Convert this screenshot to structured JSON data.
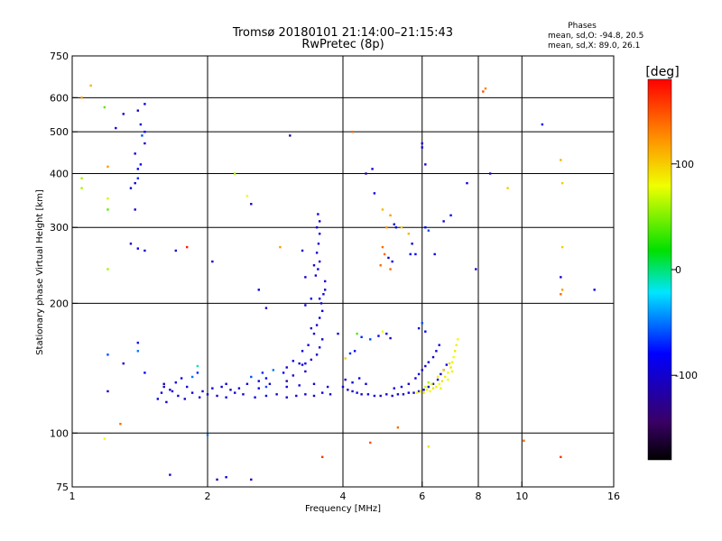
{
  "chart_data": {
    "type": "scatter",
    "title": "Tromsø 20180101 21:14:00–21:15:43",
    "subtitle": "RwPretec (8p)",
    "stats": {
      "heading": "Phases",
      "o_line": "mean, sd,O: -94.8, 20.5",
      "x_line": "mean, sd,X:  89.0, 26.1"
    },
    "xlabel": "Frequency [MHz]",
    "ylabel": "Stationary phase Virtual Height [km]",
    "x_scale": "log",
    "y_scale": "log",
    "xlim": [
      1,
      16
    ],
    "ylim": [
      75,
      750
    ],
    "x_ticks": [
      1,
      2,
      4,
      6,
      8,
      10,
      16
    ],
    "y_ticks": [
      75,
      100,
      200,
      300,
      400,
      500,
      600,
      750
    ],
    "x_grid": [
      2,
      4,
      6,
      8,
      10
    ],
    "y_grid": [
      100,
      200,
      300,
      400,
      500,
      600
    ],
    "colorbar": {
      "label": "[deg]",
      "range": [
        -180,
        180
      ],
      "ticks": [
        100,
        0,
        -100
      ]
    },
    "points": [
      [
        1.55,
        120,
        -95
      ],
      [
        1.58,
        124,
        -90
      ],
      [
        1.62,
        118,
        -100
      ],
      [
        1.67,
        125,
        -95
      ],
      [
        1.72,
        122,
        -85
      ],
      [
        1.78,
        120,
        -100
      ],
      [
        1.85,
        124,
        -95
      ],
      [
        1.92,
        121,
        -90
      ],
      [
        2.0,
        123,
        -95
      ],
      [
        2.1,
        122,
        -100
      ],
      [
        2.2,
        121,
        -90
      ],
      [
        2.3,
        124,
        -95
      ],
      [
        2.4,
        123,
        -100
      ],
      [
        2.55,
        121,
        -90
      ],
      [
        2.7,
        122,
        -95
      ],
      [
        2.85,
        123,
        -100
      ],
      [
        3.0,
        121,
        -95
      ],
      [
        3.15,
        122,
        -90
      ],
      [
        3.3,
        123,
        -100
      ],
      [
        3.45,
        122,
        -95
      ],
      [
        3.6,
        124,
        -90
      ],
      [
        3.75,
        123,
        -100
      ],
      [
        1.6,
        130,
        -110
      ],
      [
        1.75,
        134,
        -90
      ],
      [
        1.9,
        138,
        -70
      ],
      [
        2.2,
        130,
        -80
      ],
      [
        2.5,
        135,
        -60
      ],
      [
        2.8,
        140,
        -50
      ],
      [
        2.95,
        138,
        -90
      ],
      [
        3.1,
        136,
        -100
      ],
      [
        3.25,
        144,
        -95
      ],
      [
        3.4,
        148,
        -90
      ],
      [
        3.5,
        152,
        -100
      ],
      [
        3.55,
        158,
        -95
      ],
      [
        3.6,
        165,
        -100
      ],
      [
        3.45,
        170,
        -95
      ],
      [
        3.5,
        178,
        -100
      ],
      [
        3.55,
        185,
        -90
      ],
      [
        3.6,
        192,
        -95
      ],
      [
        3.58,
        200,
        -100
      ],
      [
        3.62,
        210,
        -90
      ],
      [
        3.65,
        215,
        -95
      ],
      [
        3.48,
        232,
        -100
      ],
      [
        3.52,
        240,
        -95
      ],
      [
        3.55,
        250,
        -90
      ],
      [
        3.5,
        262,
        -100
      ],
      [
        3.53,
        275,
        -95
      ],
      [
        3.55,
        290,
        -90
      ],
      [
        3.5,
        300,
        -100
      ],
      [
        3.55,
        310,
        -95
      ],
      [
        3.52,
        322,
        -90
      ],
      [
        3.3,
        139,
        -100
      ],
      [
        3.2,
        145,
        -95
      ],
      [
        3.35,
        160,
        -90
      ],
      [
        3.4,
        175,
        -100
      ],
      [
        3.25,
        155,
        -95
      ],
      [
        3.1,
        147,
        -90
      ],
      [
        3.0,
        142,
        -100
      ],
      [
        2.6,
        132,
        -95
      ],
      [
        2.65,
        138,
        -70
      ],
      [
        2.7,
        134,
        -80
      ],
      [
        2.45,
        130,
        -90
      ],
      [
        2.35,
        127,
        -100
      ],
      [
        1.6,
        128,
        -100
      ],
      [
        1.65,
        126,
        -95
      ],
      [
        1.7,
        131,
        -90
      ],
      [
        1.8,
        128,
        -95
      ],
      [
        1.95,
        125,
        -100
      ],
      [
        2.05,
        127,
        -90
      ],
      [
        2.15,
        128,
        -95
      ],
      [
        2.25,
        126,
        -100
      ],
      [
        2.6,
        127,
        -90
      ],
      [
        2.75,
        130,
        -95
      ],
      [
        3.0,
        128,
        -100
      ],
      [
        3.2,
        129,
        -90
      ],
      [
        3.45,
        130,
        -95
      ],
      [
        3.7,
        128,
        -100
      ],
      [
        4.0,
        128,
        -95
      ],
      [
        4.1,
        126,
        -100
      ],
      [
        4.2,
        125,
        -95
      ],
      [
        4.3,
        124,
        -90
      ],
      [
        4.4,
        123,
        -100
      ],
      [
        4.55,
        123,
        -95
      ],
      [
        4.7,
        122,
        -90
      ],
      [
        4.85,
        122,
        -100
      ],
      [
        5.0,
        123,
        -95
      ],
      [
        5.15,
        122,
        -90
      ],
      [
        5.3,
        123,
        -100
      ],
      [
        5.45,
        123,
        -95
      ],
      [
        5.6,
        124,
        -90
      ],
      [
        5.75,
        124,
        -100
      ],
      [
        5.9,
        125,
        -95
      ],
      [
        6.05,
        126,
        -90
      ],
      [
        6.2,
        128,
        -100
      ],
      [
        6.35,
        130,
        -95
      ],
      [
        6.5,
        133,
        -90
      ],
      [
        6.6,
        137,
        -100
      ],
      [
        6.7,
        140,
        -95
      ],
      [
        6.8,
        144,
        -90
      ],
      [
        5.6,
        130,
        -100
      ],
      [
        5.8,
        134,
        -95
      ],
      [
        5.9,
        137,
        -90
      ],
      [
        6.0,
        140,
        -100
      ],
      [
        6.1,
        143,
        -95
      ],
      [
        6.2,
        146,
        -90
      ],
      [
        6.35,
        150,
        -100
      ],
      [
        6.45,
        155,
        -95
      ],
      [
        6.55,
        160,
        -90
      ],
      [
        4.2,
        131,
        -100
      ],
      [
        4.35,
        134,
        -95
      ],
      [
        4.5,
        130,
        -90
      ],
      [
        4.05,
        133,
        -100
      ],
      [
        5.2,
        127,
        -95
      ],
      [
        5.4,
        128,
        -90
      ],
      [
        5.85,
        124,
        80
      ],
      [
        5.95,
        125,
        85
      ],
      [
        6.05,
        124,
        90
      ],
      [
        6.15,
        126,
        85
      ],
      [
        6.25,
        125,
        80
      ],
      [
        6.35,
        127,
        90
      ],
      [
        6.45,
        128,
        85
      ],
      [
        6.55,
        130,
        80
      ],
      [
        6.65,
        132,
        90
      ],
      [
        6.75,
        135,
        85
      ],
      [
        6.85,
        138,
        80
      ],
      [
        6.95,
        142,
        90
      ],
      [
        7.0,
        146,
        85
      ],
      [
        7.05,
        150,
        80
      ],
      [
        7.1,
        155,
        90
      ],
      [
        7.15,
        160,
        85
      ],
      [
        7.2,
        165,
        80
      ],
      [
        6.3,
        130,
        75
      ],
      [
        6.5,
        135,
        85
      ],
      [
        6.7,
        140,
        90
      ],
      [
        6.9,
        145,
        95
      ],
      [
        6.1,
        128,
        70
      ],
      [
        6.2,
        131,
        60
      ],
      [
        6.6,
        127,
        75
      ],
      [
        6.85,
        133,
        80
      ],
      [
        7.0,
        139,
        85
      ],
      [
        1.4,
        155,
        -50
      ],
      [
        1.4,
        162,
        -90
      ],
      [
        1.2,
        152,
        -60
      ],
      [
        1.2,
        125,
        -100
      ],
      [
        1.3,
        145,
        -100
      ],
      [
        1.45,
        138,
        -80
      ],
      [
        1.9,
        143,
        -10
      ],
      [
        1.85,
        135,
        -50
      ],
      [
        2.7,
        128,
        -60
      ],
      [
        4.4,
        167,
        -70
      ],
      [
        4.6,
        165,
        -60
      ],
      [
        4.8,
        168,
        -80
      ],
      [
        5.0,
        170,
        -90
      ],
      [
        5.1,
        166,
        -100
      ],
      [
        4.3,
        170,
        40
      ],
      [
        4.9,
        172,
        80
      ],
      [
        4.05,
        149,
        100
      ],
      [
        4.15,
        153,
        -70
      ],
      [
        4.25,
        155,
        -80
      ],
      [
        5.9,
        175,
        -100
      ],
      [
        6.0,
        180,
        -60
      ],
      [
        6.1,
        172,
        -80
      ],
      [
        1.4,
        560,
        -100
      ],
      [
        1.45,
        580,
        -90
      ],
      [
        1.42,
        520,
        -95
      ],
      [
        1.43,
        490,
        -60
      ],
      [
        1.45,
        470,
        -100
      ],
      [
        1.38,
        445,
        -90
      ],
      [
        1.42,
        420,
        -80
      ],
      [
        1.4,
        390,
        -70
      ],
      [
        1.35,
        370,
        -95
      ],
      [
        1.38,
        380,
        -100
      ],
      [
        1.4,
        410,
        -90
      ],
      [
        1.38,
        330,
        -100
      ],
      [
        1.35,
        275,
        -100
      ],
      [
        1.4,
        268,
        -90
      ],
      [
        1.45,
        265,
        -95
      ],
      [
        1.18,
        570,
        40
      ],
      [
        1.3,
        550,
        -100
      ],
      [
        1.1,
        640,
        110
      ],
      [
        1.05,
        390,
        60
      ],
      [
        1.2,
        350,
        70
      ],
      [
        1.2,
        330,
        40
      ],
      [
        1.2,
        240,
        60
      ],
      [
        1.25,
        510,
        -100
      ],
      [
        1.45,
        500,
        -80
      ],
      [
        1.2,
        415,
        120
      ],
      [
        3.05,
        490,
        -120
      ],
      [
        4.2,
        500,
        140
      ],
      [
        4.5,
        400,
        -110
      ],
      [
        4.65,
        410,
        -100
      ],
      [
        4.7,
        360,
        -90
      ],
      [
        4.9,
        330,
        110
      ],
      [
        5.0,
        300,
        120
      ],
      [
        5.1,
        320,
        120
      ],
      [
        5.2,
        305,
        -100
      ],
      [
        5.25,
        300,
        -95
      ],
      [
        4.9,
        270,
        140
      ],
      [
        4.95,
        260,
        140
      ],
      [
        5.05,
        255,
        -100
      ],
      [
        5.15,
        250,
        -90
      ],
      [
        4.85,
        245,
        140
      ],
      [
        5.1,
        240,
        140
      ],
      [
        5.4,
        300,
        100
      ],
      [
        5.6,
        290,
        110
      ],
      [
        5.7,
        275,
        -100
      ],
      [
        5.65,
        260,
        -90
      ],
      [
        6.1,
        300,
        -80
      ],
      [
        6.2,
        295,
        -60
      ],
      [
        6.7,
        310,
        -100
      ],
      [
        6.95,
        320,
        -90
      ],
      [
        6.0,
        470,
        -95
      ],
      [
        6.0,
        460,
        -90
      ],
      [
        6.1,
        420,
        -100
      ],
      [
        8.2,
        620,
        150
      ],
      [
        8.3,
        630,
        130
      ],
      [
        8.5,
        400,
        -100
      ],
      [
        9.3,
        370,
        100
      ],
      [
        11.1,
        520,
        -80
      ],
      [
        12.2,
        430,
        110
      ],
      [
        12.3,
        380,
        100
      ],
      [
        12.3,
        270,
        100
      ],
      [
        12.2,
        230,
        -100
      ],
      [
        12.3,
        215,
        120
      ],
      [
        12.2,
        210,
        140
      ],
      [
        14.5,
        215,
        -90
      ],
      [
        2.3,
        400,
        60
      ],
      [
        2.45,
        355,
        80
      ],
      [
        2.5,
        340,
        -100
      ],
      [
        2.6,
        215,
        -90
      ],
      [
        2.9,
        270,
        120
      ],
      [
        3.3,
        230,
        -100
      ],
      [
        3.25,
        265,
        -100
      ],
      [
        1.7,
        265,
        -100
      ],
      [
        1.8,
        270,
        170
      ],
      [
        2.05,
        250,
        -100
      ],
      [
        2.7,
        195,
        -100
      ],
      [
        3.9,
        170,
        -100
      ],
      [
        3.3,
        145,
        -80
      ],
      [
        4.6,
        95,
        150
      ],
      [
        6.2,
        93,
        90
      ],
      [
        5.3,
        103,
        140
      ],
      [
        1.28,
        105,
        140
      ],
      [
        1.18,
        97,
        80
      ],
      [
        12.2,
        88,
        160
      ],
      [
        10.1,
        96,
        140
      ],
      [
        2.0,
        99,
        -50
      ],
      [
        3.6,
        88,
        160
      ],
      [
        2.2,
        79,
        -100
      ],
      [
        2.5,
        78,
        -100
      ],
      [
        1.65,
        80,
        -110
      ],
      [
        2.1,
        78,
        -100
      ],
      [
        7.9,
        240,
        -100
      ],
      [
        7.55,
        380,
        -100
      ],
      [
        6.4,
        260,
        -90
      ],
      [
        5.8,
        260,
        -80
      ],
      [
        1.05,
        600,
        120
      ],
      [
        1.05,
        370,
        60
      ],
      [
        3.0,
        132,
        -120
      ],
      [
        3.3,
        198,
        -100
      ],
      [
        3.4,
        205,
        -90
      ],
      [
        3.55,
        205,
        -100
      ],
      [
        3.65,
        225,
        -95
      ],
      [
        3.45,
        245,
        -100
      ]
    ]
  }
}
